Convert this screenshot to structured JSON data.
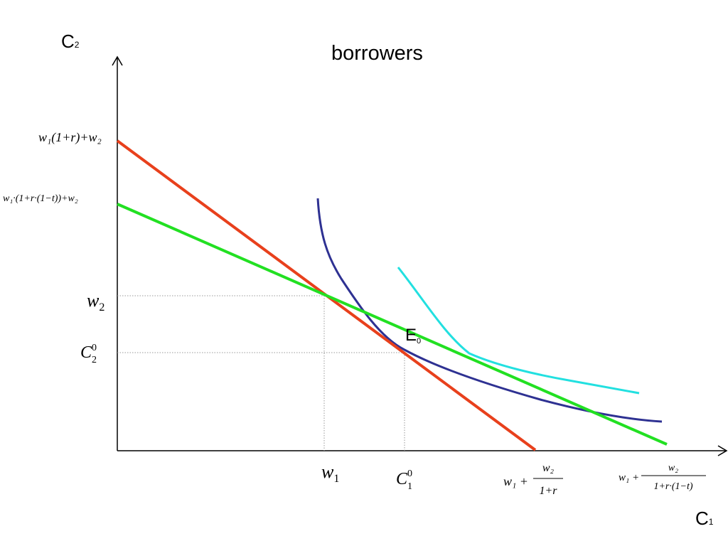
{
  "title": "borrowers",
  "axes": {
    "y_label": {
      "main": "C",
      "sub": "2"
    },
    "x_label": {
      "main": "C",
      "sub": "1"
    }
  },
  "y_ticks": {
    "intercept_no_tax": "w₁(1+r)+w₂",
    "intercept_tax": "w₁·(1+r·(1−t))+w₂",
    "w2": {
      "main": "w",
      "sub": "2"
    },
    "c2_0": {
      "main": "C",
      "sub": "2",
      "sup": "0"
    }
  },
  "x_ticks": {
    "w1": {
      "main": "w",
      "sub": "1"
    },
    "c1_0": {
      "main": "C",
      "sub": "1",
      "sup": "0"
    },
    "intercept_no_tax": {
      "lead": "w₁ +",
      "num": "w₂",
      "den": "1+r"
    },
    "intercept_tax": {
      "lead": "w₁ +",
      "num": "w₂",
      "den": "1+r·(1−t)"
    }
  },
  "point_label": {
    "main": "E",
    "sub": "0"
  },
  "colors": {
    "axis": "#000000",
    "budget_no_tax": "#e8401c",
    "budget_tax": "#22e022",
    "indifference_low": "#2e3192",
    "indifference_high": "#22e0e0",
    "guide": "#999999"
  }
}
